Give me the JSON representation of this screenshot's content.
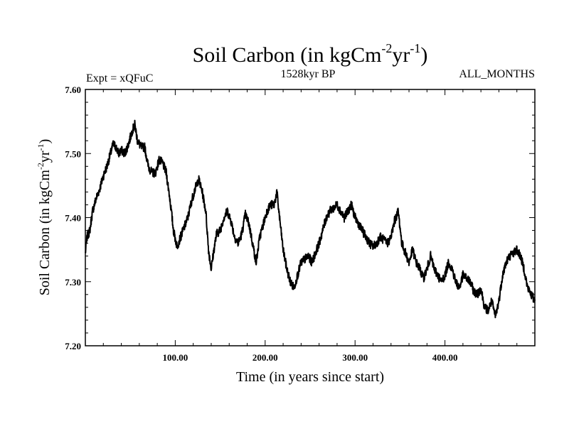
{
  "chart_data": {
    "type": "line",
    "title": {
      "base": "Soil Carbon (in kgCm",
      "exp1": "-2",
      "mid": "yr",
      "exp2": "-1",
      "end": ")"
    },
    "subtitle_left": "Expt = xQFuC",
    "subtitle_center": "1528kyr BP",
    "subtitle_right": "ALL_MONTHS",
    "xlabel": "Time (in years since start)",
    "ylabel": {
      "base": "Soil Carbon (in kgCm",
      "exp1": "-2",
      "mid": "yr",
      "exp2": "-1",
      "end": ")"
    },
    "xlim": [
      0,
      500
    ],
    "ylim": [
      7.2,
      7.6
    ],
    "x_ticks": [
      100,
      200,
      300,
      400
    ],
    "x_tick_labels": [
      "100.00",
      "200.00",
      "300.00",
      "400.00"
    ],
    "x_minor_step": 20,
    "y_ticks": [
      7.2,
      7.3,
      7.4,
      7.5,
      7.6
    ],
    "y_tick_labels": [
      "7.20",
      "7.30",
      "7.40",
      "7.50",
      "7.60"
    ],
    "y_minor_step": 0.02,
    "series": [
      {
        "name": "Soil Carbon",
        "color": "#000000",
        "x": [
          0,
          2,
          5,
          8,
          12,
          16,
          20,
          24,
          28,
          31,
          34,
          37,
          40,
          44,
          48,
          52,
          55,
          58,
          62,
          66,
          70,
          74,
          78,
          82,
          86,
          90,
          94,
          98,
          102,
          106,
          110,
          114,
          118,
          122,
          126,
          130,
          134,
          137,
          140,
          143,
          146,
          150,
          154,
          158,
          162,
          166,
          170,
          174,
          178,
          182,
          186,
          190,
          194,
          198,
          202,
          206,
          210,
          213,
          216,
          220,
          224,
          228,
          232,
          236,
          240,
          244,
          248,
          252,
          256,
          260,
          264,
          268,
          272,
          276,
          280,
          284,
          288,
          292,
          296,
          300,
          304,
          308,
          312,
          316,
          320,
          324,
          328,
          332,
          336,
          340,
          344,
          348,
          352,
          356,
          360,
          364,
          368,
          372,
          376,
          380,
          384,
          388,
          392,
          396,
          400,
          404,
          408,
          412,
          416,
          420,
          424,
          428,
          432,
          436,
          440,
          444,
          448,
          452,
          456,
          460,
          464,
          468,
          472,
          476,
          480,
          484,
          488,
          492,
          496,
          500
        ],
        "y": [
          7.345,
          7.37,
          7.38,
          7.41,
          7.43,
          7.445,
          7.465,
          7.48,
          7.5,
          7.515,
          7.51,
          7.5,
          7.505,
          7.5,
          7.515,
          7.535,
          7.545,
          7.52,
          7.51,
          7.51,
          7.48,
          7.47,
          7.47,
          7.49,
          7.485,
          7.47,
          7.43,
          7.38,
          7.355,
          7.37,
          7.385,
          7.4,
          7.425,
          7.445,
          7.46,
          7.44,
          7.41,
          7.35,
          7.32,
          7.35,
          7.375,
          7.38,
          7.4,
          7.41,
          7.395,
          7.37,
          7.36,
          7.375,
          7.405,
          7.39,
          7.36,
          7.33,
          7.37,
          7.39,
          7.41,
          7.42,
          7.42,
          7.44,
          7.4,
          7.35,
          7.32,
          7.3,
          7.29,
          7.31,
          7.33,
          7.335,
          7.34,
          7.33,
          7.345,
          7.36,
          7.38,
          7.4,
          7.41,
          7.415,
          7.42,
          7.41,
          7.4,
          7.41,
          7.42,
          7.4,
          7.39,
          7.38,
          7.37,
          7.36,
          7.355,
          7.36,
          7.37,
          7.365,
          7.36,
          7.37,
          7.395,
          7.41,
          7.36,
          7.345,
          7.33,
          7.35,
          7.33,
          7.32,
          7.305,
          7.32,
          7.34,
          7.32,
          7.31,
          7.3,
          7.31,
          7.33,
          7.32,
          7.3,
          7.29,
          7.31,
          7.305,
          7.3,
          7.285,
          7.28,
          7.29,
          7.26,
          7.255,
          7.27,
          7.245,
          7.27,
          7.31,
          7.33,
          7.34,
          7.345,
          7.35,
          7.34,
          7.32,
          7.29,
          7.28,
          7.27
        ]
      }
    ]
  }
}
